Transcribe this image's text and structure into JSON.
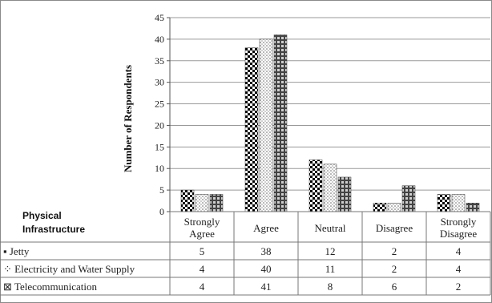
{
  "chart_data": {
    "type": "bar",
    "ylabel": "Number of Respondents",
    "ylim": [
      0,
      45
    ],
    "yticks": [
      0,
      5,
      10,
      15,
      20,
      25,
      30,
      35,
      40,
      45
    ],
    "grid": true,
    "categories": [
      "Strongly Agree",
      "Agree",
      "Neutral",
      "Disagree",
      "Strongly Disagree"
    ],
    "table_header": "Physical Infrastructure",
    "series": [
      {
        "name": "Jetty",
        "values": [
          5,
          38,
          12,
          2,
          4
        ],
        "marker": "▪",
        "pattern": "checker"
      },
      {
        "name": "Electricity and Water Supply",
        "values": [
          4,
          40,
          11,
          2,
          4
        ],
        "marker": "⁘",
        "pattern": "dots"
      },
      {
        "name": "Telecommunication",
        "values": [
          4,
          41,
          8,
          6,
          2
        ],
        "marker": "⊠",
        "pattern": "grid"
      }
    ]
  }
}
